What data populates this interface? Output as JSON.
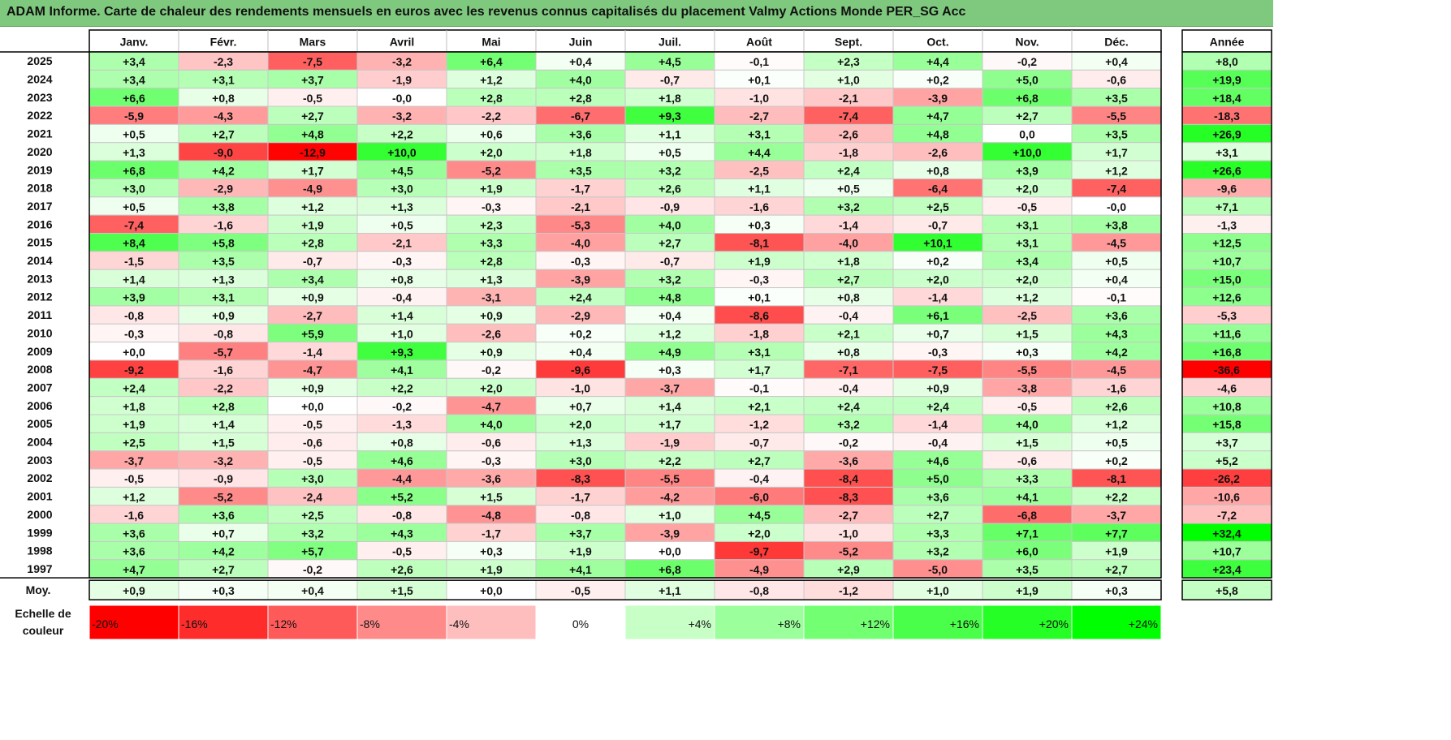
{
  "title": "ADAM Informe. Carte de chaleur des rendements mensuels en euros avec les revenus connus capitalisés du placement Valmy Actions Monde PER_SG Acc",
  "chart_data": {
    "type": "heatmap",
    "columns": [
      "Janv.",
      "Févr.",
      "Mars",
      "Avril",
      "Mai",
      "Juin",
      "Juil.",
      "Août",
      "Sept.",
      "Oct.",
      "Nov.",
      "Déc."
    ],
    "annual_header": "Année",
    "rows": [
      {
        "year": "2025",
        "values": [
          "+3,4",
          "-2,3",
          "-7,5",
          "-3,2",
          "+6,4",
          "+0,4",
          "+4,5",
          "-0,1",
          "+2,3",
          "+4,4",
          "-0,2",
          "+0,4"
        ],
        "annual": "+8,0"
      },
      {
        "year": "2024",
        "values": [
          "+3,4",
          "+3,1",
          "+3,7",
          "-1,9",
          "+1,2",
          "+4,0",
          "-0,7",
          "+0,1",
          "+1,0",
          "+0,2",
          "+5,0",
          "-0,6"
        ],
        "annual": "+19,9"
      },
      {
        "year": "2023",
        "values": [
          "+6,6",
          "+0,8",
          "-0,5",
          "-0,0",
          "+2,8",
          "+2,8",
          "+1,8",
          "-1,0",
          "-2,1",
          "-3,9",
          "+6,8",
          "+3,5"
        ],
        "annual": "+18,4"
      },
      {
        "year": "2022",
        "values": [
          "-5,9",
          "-4,3",
          "+2,7",
          "-3,2",
          "-2,2",
          "-6,7",
          "+9,3",
          "-2,7",
          "-7,4",
          "+4,7",
          "+2,7",
          "-5,5"
        ],
        "annual": "-18,3"
      },
      {
        "year": "2021",
        "values": [
          "+0,5",
          "+2,7",
          "+4,8",
          "+2,2",
          "+0,6",
          "+3,6",
          "+1,1",
          "+3,1",
          "-2,6",
          "+4,8",
          "0,0",
          "+3,5"
        ],
        "annual": "+26,9"
      },
      {
        "year": "2020",
        "values": [
          "+1,3",
          "-9,0",
          "-12,9",
          "+10,0",
          "+2,0",
          "+1,8",
          "+0,5",
          "+4,4",
          "-1,8",
          "-2,6",
          "+10,0",
          "+1,7"
        ],
        "annual": "+3,1"
      },
      {
        "year": "2019",
        "values": [
          "+6,8",
          "+4,2",
          "+1,7",
          "+4,5",
          "-5,2",
          "+3,5",
          "+3,2",
          "-2,5",
          "+2,4",
          "+0,8",
          "+3,9",
          "+1,2"
        ],
        "annual": "+26,6"
      },
      {
        "year": "2018",
        "values": [
          "+3,0",
          "-2,9",
          "-4,9",
          "+3,0",
          "+1,9",
          "-1,7",
          "+2,6",
          "+1,1",
          "+0,5",
          "-6,4",
          "+2,0",
          "-7,4"
        ],
        "annual": "-9,6"
      },
      {
        "year": "2017",
        "values": [
          "+0,5",
          "+3,8",
          "+1,2",
          "+1,3",
          "-0,3",
          "-2,1",
          "-0,9",
          "-1,6",
          "+3,2",
          "+2,5",
          "-0,5",
          "-0,0"
        ],
        "annual": "+7,1"
      },
      {
        "year": "2016",
        "values": [
          "-7,4",
          "-1,6",
          "+1,9",
          "+0,5",
          "+2,3",
          "-5,3",
          "+4,0",
          "+0,3",
          "-1,4",
          "-0,7",
          "+3,1",
          "+3,8"
        ],
        "annual": "-1,3"
      },
      {
        "year": "2015",
        "values": [
          "+8,4",
          "+5,8",
          "+2,8",
          "-2,1",
          "+3,3",
          "-4,0",
          "+2,7",
          "-8,1",
          "-4,0",
          "+10,1",
          "+3,1",
          "-4,5"
        ],
        "annual": "+12,5"
      },
      {
        "year": "2014",
        "values": [
          "-1,5",
          "+3,5",
          "-0,7",
          "-0,3",
          "+2,8",
          "-0,3",
          "-0,7",
          "+1,9",
          "+1,8",
          "+0,2",
          "+3,4",
          "+0,5"
        ],
        "annual": "+10,7"
      },
      {
        "year": "2013",
        "values": [
          "+1,4",
          "+1,3",
          "+3,4",
          "+0,8",
          "+1,3",
          "-3,9",
          "+3,2",
          "-0,3",
          "+2,7",
          "+2,0",
          "+2,0",
          "+0,4"
        ],
        "annual": "+15,0"
      },
      {
        "year": "2012",
        "values": [
          "+3,9",
          "+3,1",
          "+0,9",
          "-0,4",
          "-3,1",
          "+2,4",
          "+4,8",
          "+0,1",
          "+0,8",
          "-1,4",
          "+1,2",
          "-0,1"
        ],
        "annual": "+12,6"
      },
      {
        "year": "2011",
        "values": [
          "-0,8",
          "+0,9",
          "-2,7",
          "+1,4",
          "+0,9",
          "-2,9",
          "+0,4",
          "-8,6",
          "-0,4",
          "+6,1",
          "-2,5",
          "+3,6"
        ],
        "annual": "-5,3"
      },
      {
        "year": "2010",
        "values": [
          "-0,3",
          "-0,8",
          "+5,9",
          "+1,0",
          "-2,6",
          "+0,2",
          "+1,2",
          "-1,8",
          "+2,1",
          "+0,7",
          "+1,5",
          "+4,3"
        ],
        "annual": "+11,6"
      },
      {
        "year": "2009",
        "values": [
          "+0,0",
          "-5,7",
          "-1,4",
          "+9,3",
          "+0,9",
          "+0,4",
          "+4,9",
          "+3,1",
          "+0,8",
          "-0,3",
          "+0,3",
          "+4,2"
        ],
        "annual": "+16,8"
      },
      {
        "year": "2008",
        "values": [
          "-9,2",
          "-1,6",
          "-4,7",
          "+4,1",
          "-0,2",
          "-9,6",
          "+0,3",
          "+1,7",
          "-7,1",
          "-7,5",
          "-5,5",
          "-4,5"
        ],
        "annual": "-36,6"
      },
      {
        "year": "2007",
        "values": [
          "+2,4",
          "-2,2",
          "+0,9",
          "+2,2",
          "+2,0",
          "-1,0",
          "-3,7",
          "-0,1",
          "-0,4",
          "+0,9",
          "-3,8",
          "-1,6"
        ],
        "annual": "-4,6"
      },
      {
        "year": "2006",
        "values": [
          "+1,8",
          "+2,8",
          "+0,0",
          "-0,2",
          "-4,7",
          "+0,7",
          "+1,4",
          "+2,1",
          "+2,4",
          "+2,4",
          "-0,5",
          "+2,6"
        ],
        "annual": "+10,8"
      },
      {
        "year": "2005",
        "values": [
          "+1,9",
          "+1,4",
          "-0,5",
          "-1,3",
          "+4,0",
          "+2,0",
          "+1,7",
          "-1,2",
          "+3,2",
          "-1,4",
          "+4,0",
          "+1,2"
        ],
        "annual": "+15,8"
      },
      {
        "year": "2004",
        "values": [
          "+2,5",
          "+1,5",
          "-0,6",
          "+0,8",
          "-0,6",
          "+1,3",
          "-1,9",
          "-0,7",
          "-0,2",
          "-0,4",
          "+1,5",
          "+0,5"
        ],
        "annual": "+3,7"
      },
      {
        "year": "2003",
        "values": [
          "-3,7",
          "-3,2",
          "-0,5",
          "+4,6",
          "-0,3",
          "+3,0",
          "+2,2",
          "+2,7",
          "-3,6",
          "+4,6",
          "-0,6",
          "+0,2"
        ],
        "annual": "+5,2"
      },
      {
        "year": "2002",
        "values": [
          "-0,5",
          "-0,9",
          "+3,0",
          "-4,4",
          "-3,6",
          "-8,3",
          "-5,5",
          "-0,4",
          "-8,4",
          "+5,0",
          "+3,3",
          "-8,1"
        ],
        "annual": "-26,2"
      },
      {
        "year": "2001",
        "values": [
          "+1,2",
          "-5,2",
          "-2,4",
          "+5,2",
          "+1,5",
          "-1,7",
          "-4,2",
          "-6,0",
          "-8,3",
          "+3,6",
          "+4,1",
          "+2,2"
        ],
        "annual": "-10,6"
      },
      {
        "year": "2000",
        "values": [
          "-1,6",
          "+3,6",
          "+2,5",
          "-0,8",
          "-4,8",
          "-0,8",
          "+1,0",
          "+4,5",
          "-2,7",
          "+2,7",
          "-6,8",
          "-3,7"
        ],
        "annual": "-7,2"
      },
      {
        "year": "1999",
        "values": [
          "+3,6",
          "+0,7",
          "+3,2",
          "+4,3",
          "-1,7",
          "+3,7",
          "-3,9",
          "+2,0",
          "-1,0",
          "+3,3",
          "+7,1",
          "+7,7"
        ],
        "annual": "+32,4"
      },
      {
        "year": "1998",
        "values": [
          "+3,6",
          "+4,2",
          "+5,7",
          "-0,5",
          "+0,3",
          "+1,9",
          "+0,0",
          "-9,7",
          "-5,2",
          "+3,2",
          "+6,0",
          "+1,9"
        ],
        "annual": "+10,7"
      },
      {
        "year": "1997",
        "values": [
          "+4,7",
          "+2,7",
          "-0,2",
          "+2,6",
          "+1,9",
          "+4,1",
          "+6,8",
          "-4,9",
          "+2,9",
          "-5,0",
          "+3,5",
          "+2,7"
        ],
        "annual": "+23,4"
      }
    ],
    "average": {
      "label": "Moy.",
      "values": [
        "+0,9",
        "+0,3",
        "+0,4",
        "+1,5",
        "+0,0",
        "-0,5",
        "+1,1",
        "-0,8",
        "-1,2",
        "+1,0",
        "+1,9",
        "+0,3"
      ],
      "annual": "+5,8"
    },
    "scale": {
      "label_line1": "Echelle de",
      "label_line2": "couleur",
      "stops": [
        {
          "label": "-20%",
          "value": -20
        },
        {
          "label": "-16%",
          "value": -16
        },
        {
          "label": "-12%",
          "value": -12
        },
        {
          "label": "-8%",
          "value": -8
        },
        {
          "label": "-4%",
          "value": -4
        },
        {
          "label": "0%",
          "value": 0
        },
        {
          "label": "+4%",
          "value": 4
        },
        {
          "label": "+8%",
          "value": 8
        },
        {
          "label": "+12%",
          "value": 12
        },
        {
          "label": "+16%",
          "value": 16
        },
        {
          "label": "+20%",
          "value": 20
        },
        {
          "label": "+24%",
          "value": 24
        }
      ],
      "negative_color": "#ff0000",
      "positive_color": "#00ff00",
      "neutral_color": "#ffffff"
    }
  }
}
